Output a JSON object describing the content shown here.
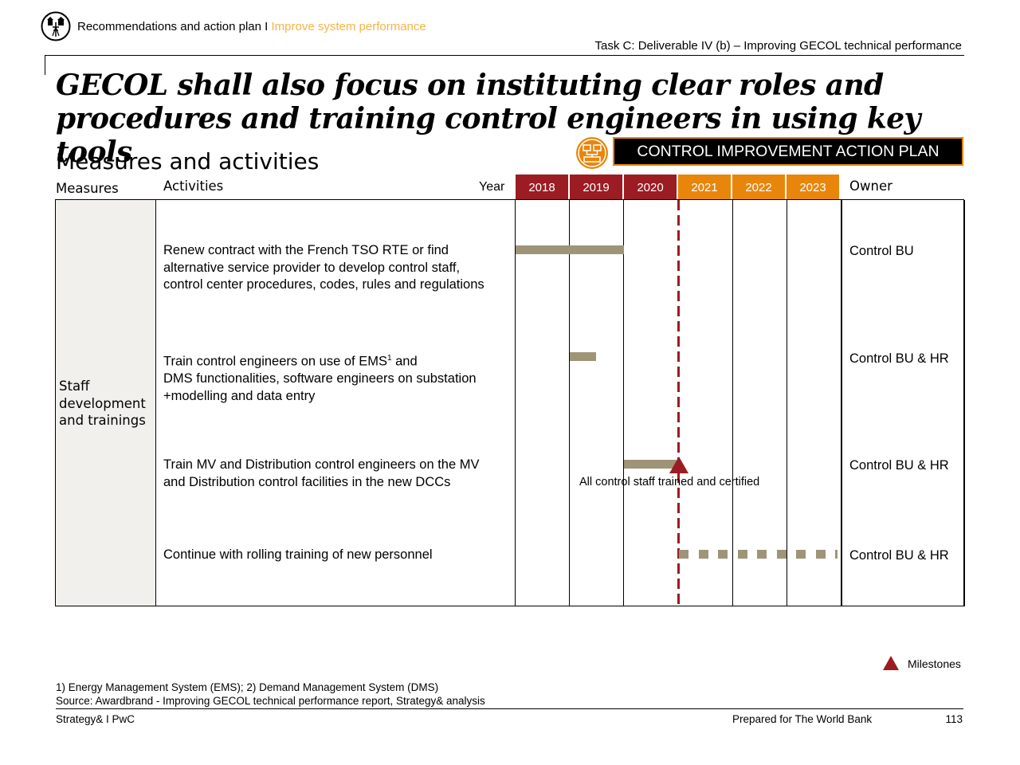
{
  "header": {
    "section": "Recommendations and action plan",
    "separator": " I ",
    "subsection": "Improve system performance",
    "task": "Task C: Deliverable IV (b) – Improving GECOL technical performance"
  },
  "title": "GECOL shall also focus on instituting clear roles and procedures and training control engineers in using key tools",
  "subtitle": "Measures and activities",
  "action_plan_label": "CONTROL IMPROVEMENT ACTION PLAN",
  "table": {
    "col_measures": "Measures",
    "col_activities": "Activities",
    "col_year": "Year",
    "col_owner": "Owner",
    "years": [
      "2018",
      "2019",
      "2020",
      "2021",
      "2022",
      "2023"
    ],
    "measure": "Staff development and trainings",
    "rows": [
      {
        "activity": "Renew contract with the French TSO RTE or find\n alternative service provider to develop control staff,\ncontrol center procedures, codes, rules and regulations",
        "owner": "Control BU",
        "timing": "2018–2019"
      },
      {
        "activity_a": "Train control engineers on use of EMS",
        "activity_sup": "1",
        "activity_b": " and\nDMS functionalities, software engineers on substation\n+modelling and data entry",
        "owner": "Control BU & HR",
        "timing": "first half of 2019"
      },
      {
        "activity": "Train MV and Distribution control engineers on the MV\nand Distribution control facilities in the new DCCs",
        "owner": "Control BU & HR",
        "timing": "2020",
        "milestone": "All control staff trained and certified"
      },
      {
        "activity": "Continue with rolling training of new personnel",
        "owner": "Control BU & HR",
        "timing": "2021–2023 (ongoing)"
      }
    ]
  },
  "legend": {
    "milestones": "Milestones"
  },
  "footnote": "1) Energy Management System (EMS); 2) Demand Management System (DMS)",
  "source": "Source: Awardbrand - Improving GECOL technical performance report, Strategy& analysis",
  "footer": {
    "left": "Strategy& I PwC",
    "center": "Prepared for The World Bank",
    "page": "113"
  },
  "colors": {
    "dark_red": "#9b1c22",
    "orange": "#e8860c",
    "accent_text": "#f5b444",
    "bar": "#9e9478",
    "measure_bg": "#f1f0ec"
  }
}
